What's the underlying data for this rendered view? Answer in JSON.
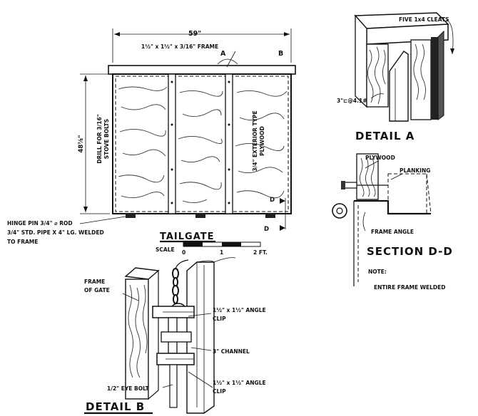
{
  "tailgate": {
    "width_dim": "59\"",
    "height_dim": "48⅞\"",
    "frame_note": "1½\" x 1½\" x 3/16\" FRAME",
    "mark_a": "A",
    "mark_b": "B",
    "drill_note_1": "DRILL FOR 3/16\"",
    "drill_note_2": "STOVE BOLTS",
    "plywood_note_1": "3/4\" EXTERIOR TYPE",
    "plywood_note_2": "PLYWOOD",
    "mark_d_top": "D",
    "mark_d_bottom": "D",
    "hinge_note_1": "HINGE PIN 3/4\" ⌀ ROD",
    "hinge_note_2": "3/4\" STD. PIPE X 4\" LG. WELDED",
    "hinge_note_3": "TO FRAME",
    "title": "TAILGATE",
    "scale_label": "SCALE",
    "scale_0": "0",
    "scale_1": "1",
    "scale_2": "2 FT."
  },
  "detail_a": {
    "cleats_note": "FIVE 1x4 CLEATS",
    "channel_note": "3\"⊏@4.1#",
    "title": "DETAIL A"
  },
  "section_dd": {
    "plywood": "PLYWOOD",
    "planking": "PLANKING",
    "frame_angle": "FRAME ANGLE",
    "title": "SECTION D-D",
    "note_label": "NOTE:",
    "note_text": "ENTIRE FRAME WELDED"
  },
  "detail_b": {
    "frame_note_1": "FRAME",
    "frame_note_2": "OF GATE",
    "clip_top_1": "1½\" x 1½\" ANGLE",
    "clip_top_2": "CLIP",
    "channel": "3\" CHANNEL",
    "eye_bolt": "1/2\" EYE BOLT",
    "clip_bottom_1": "1½\" x 1½\" ANGLE",
    "clip_bottom_2": "CLIP",
    "title": "DETAIL B"
  }
}
